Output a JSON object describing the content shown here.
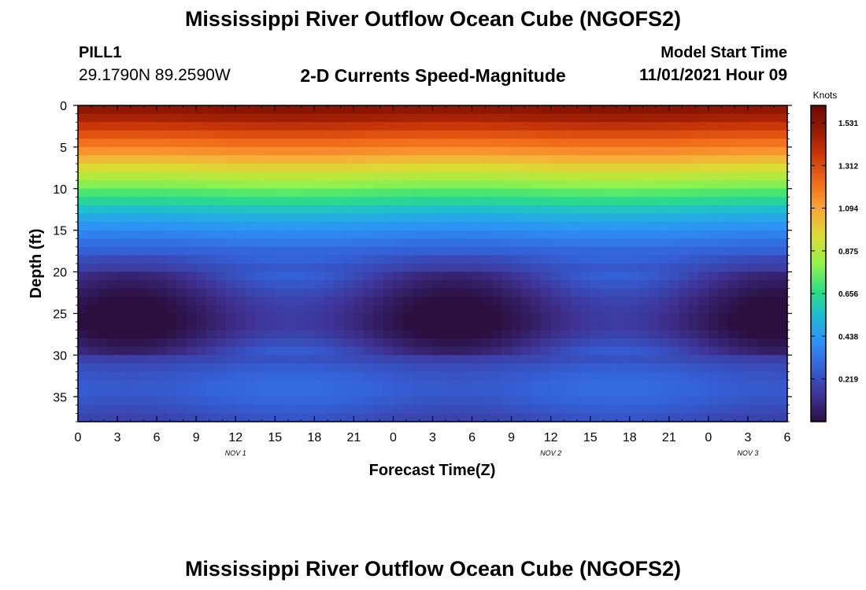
{
  "header": {
    "title": "Mississippi River Outflow Ocean Cube (NGOFS2)",
    "station": "PILL1",
    "coordinates": "29.1790N  89.2590W",
    "start_label": "Model Start Time",
    "start_value": "11/01/2021 Hour 09"
  },
  "footer": {
    "title": "Mississippi River Outflow Ocean Cube (NGOFS2)"
  },
  "chart_data": {
    "type": "heatmap",
    "title": "2-D Currents Speed-Magnitude",
    "xlabel": "Forecast Time(Z)",
    "ylabel": "Depth (ft)",
    "x_tick_labels": [
      "0",
      "3",
      "6",
      "9",
      "12",
      "15",
      "18",
      "21",
      "0",
      "3",
      "6",
      "9",
      "12",
      "15",
      "18",
      "21",
      "0",
      "3",
      "6"
    ],
    "x_range_hours": [
      0,
      54
    ],
    "y_ticks": [
      0,
      5,
      10,
      15,
      20,
      25,
      30,
      35
    ],
    "y_range": [
      0,
      38
    ],
    "y_inverted": true,
    "date_labels": [
      {
        "text": "NOV 1",
        "hour": 12
      },
      {
        "text": "NOV 2",
        "hour": 36
      },
      {
        "text": "NOV 3",
        "hour": 51
      }
    ],
    "colorbar": {
      "label": "Knots",
      "ticks": [
        1.531,
        1.312,
        1.094,
        0.875,
        0.656,
        0.438,
        0.219
      ],
      "tick_labels": [
        "1.531",
        "1.312",
        "1.094",
        "0.875",
        "0.656",
        "0.438",
        "0.219"
      ],
      "range": [
        0,
        1.62
      ],
      "colors": [
        "#2a0f3f",
        "#3f3294",
        "#3460d6",
        "#2f8ff7",
        "#1cbcd6",
        "#2fe07f",
        "#94f24a",
        "#d8dd35",
        "#fba937",
        "#f2701c",
        "#d23c0a",
        "#9a1a02",
        "#6a0b01"
      ]
    },
    "profile": {
      "depth_ft": [
        0,
        1,
        2,
        3,
        4,
        5,
        6,
        7,
        8,
        9,
        10,
        11,
        12,
        13,
        14,
        15,
        16,
        17,
        18,
        19,
        20,
        21,
        22,
        23,
        24,
        25,
        26,
        27,
        28,
        29,
        30,
        31,
        32,
        33,
        34,
        35,
        36,
        37,
        38
      ],
      "speed_knots": [
        1.55,
        1.5,
        1.42,
        1.34,
        1.26,
        1.18,
        1.1,
        1.0,
        0.92,
        0.84,
        0.76,
        0.68,
        0.6,
        0.52,
        0.46,
        0.4,
        0.35,
        0.3,
        0.26,
        0.22,
        0.19,
        0.16,
        0.13,
        0.1,
        0.08,
        0.07,
        0.06,
        0.07,
        0.1,
        0.14,
        0.18,
        0.22,
        0.25,
        0.27,
        0.28,
        0.27,
        0.25,
        0.22,
        0.2
      ]
    }
  }
}
